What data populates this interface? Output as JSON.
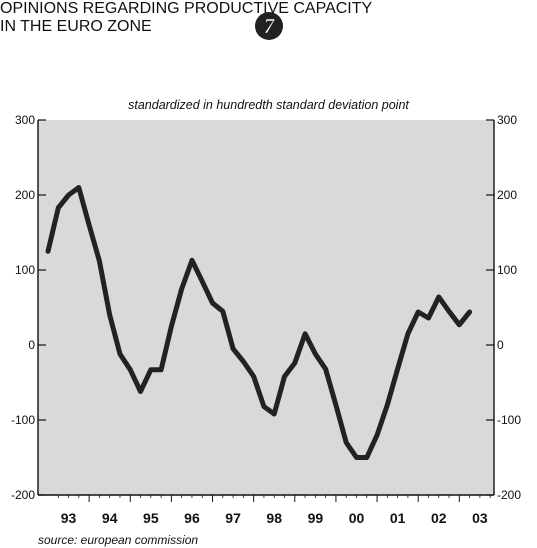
{
  "badge": {
    "label": "7",
    "color": "#222222"
  },
  "source": "source: european commission",
  "chart_data": {
    "type": "line",
    "title_lines": [
      "OPINIONS REGARDING PRODUCTIVE CAPACITY",
      "IN THE EURO ZONE"
    ],
    "subtitle": "standardized in hundredth standard deviation point",
    "ylim": [
      -200,
      300
    ],
    "yticks": [
      300,
      200,
      100,
      0,
      -100,
      -200
    ],
    "xlim": [
      1993.0,
      2003.6
    ],
    "xtick_labels": [
      "93",
      "94",
      "95",
      "96",
      "97",
      "98",
      "99",
      "00",
      "01",
      "02",
      "03"
    ],
    "grid": false,
    "plot_background": "#d9d9d9",
    "line_color": "#222222",
    "series": [
      {
        "x": [
          1993.0,
          1993.25,
          1993.5,
          1993.75,
          1994.0,
          1994.25,
          1994.5,
          1994.75,
          1995.0,
          1995.25,
          1995.5,
          1995.75,
          1996.0,
          1996.25,
          1996.5,
          1996.75,
          1997.0,
          1997.25,
          1997.5,
          1997.75,
          1998.0,
          1998.25,
          1998.5,
          1998.75,
          1999.0,
          1999.25,
          1999.5,
          1999.75,
          2000.0,
          2000.25,
          2000.5,
          2000.75,
          2001.0,
          2001.25,
          2001.5,
          2001.75,
          2002.0,
          2002.25,
          2002.5,
          2002.75,
          2003.0
        ],
        "values": [
          125,
          183,
          200,
          210,
          160,
          112,
          40,
          -12,
          -33,
          -62,
          -33,
          -33,
          25,
          75,
          113,
          85,
          56,
          45,
          -5,
          -22,
          -42,
          -82,
          -92,
          -42,
          -24,
          15,
          -12,
          -32,
          -80,
          -130,
          -150,
          -150,
          -120,
          -80,
          -32,
          15,
          44,
          36,
          64,
          45,
          27
        ]
      }
    ],
    "trailing_point": {
      "x": 2003.25,
      "value": 44
    }
  }
}
